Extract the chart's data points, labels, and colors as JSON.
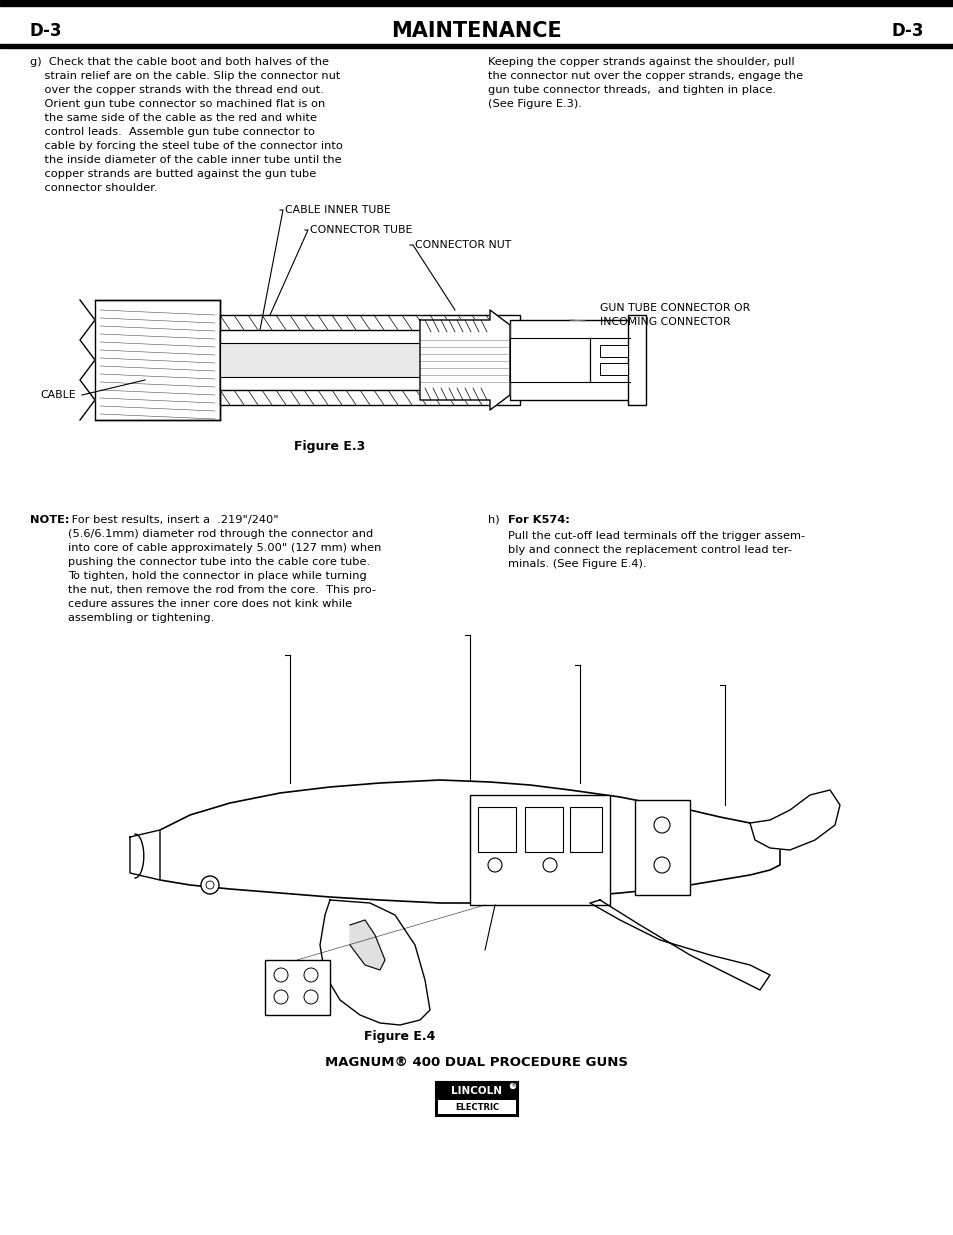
{
  "page_title": "MAINTENANCE",
  "page_id": "D-3",
  "bg_color": "#ffffff",
  "fig_width": 9.54,
  "fig_height": 12.35,
  "header_left": "D-3",
  "header_center": "MAINTENANCE",
  "header_right": "D-3",
  "col_left_g": "g)  Check that the cable boot and both halves of the\n    strain relief are on the cable. Slip the connector nut\n    over the copper strands with the thread end out.\n    Orient gun tube connector so machined flat is on\n    the same side of the cable as the red and white\n    control leads.  Assemble gun tube connector to\n    cable by forcing the steel tube of the connector into\n    the inside diameter of the cable inner tube until the\n    copper strands are butted against the gun tube\n    connector shoulder.",
  "col_right_g": "Keeping the copper strands against the shoulder, pull\nthe connector nut over the copper strands, engage the\ngun tube connector threads,  and tighten in place.\n(See Figure E.3).",
  "fig_e3_caption": "Figure E.3",
  "note_bold": "NOTE:",
  "note_rest": " For best results, insert a  .219\"/240\"\n(5.6/6.1mm) diameter rod through the connector and\ninto core of cable approximately 5.00\" (127 mm) when\npushing the connector tube into the cable core tube.\nTo tighten, hold the connector in place while turning\nthe nut, then remove the rod from the core.  This pro-\ncedure assures the inner core does not kink while\nassembling or tightening.",
  "h_bold": "For K574:",
  "h_intro": "h)  ",
  "h_body": "Pull the cut-off lead terminals off the trigger assem-\nbly and connect the replacement control lead ter-\nminals. (See Figure E.4).",
  "fig_e4_caption": "Figure E.4",
  "bottom_title_1": "MAGNUM",
  "bottom_title_reg": "®",
  "bottom_title_2": " 400 DUAL PROCEDURE GUNS",
  "logo_line1": "LINCOLN",
  "logo_line2": "ELECTRIC"
}
